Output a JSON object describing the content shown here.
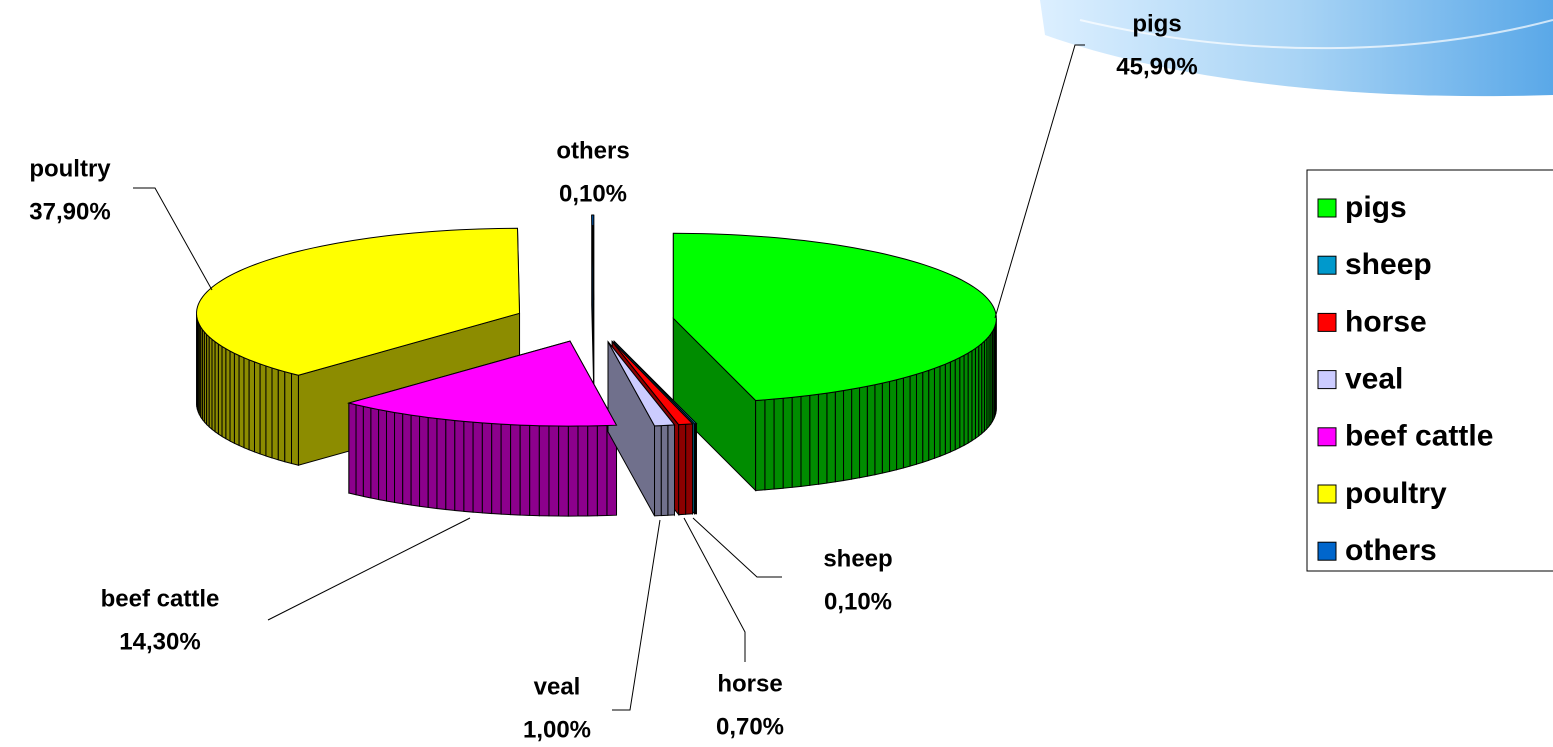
{
  "chart_data": {
    "type": "pie",
    "categories": [
      "pigs",
      "sheep",
      "horse",
      "veal",
      "beef cattle",
      "poultry",
      "others"
    ],
    "values": [
      45.9,
      0.1,
      0.7,
      1.0,
      14.3,
      37.9,
      0.1
    ],
    "value_labels": [
      "45,90%",
      "0,10%",
      "0,70%",
      "1,00%",
      "14,30%",
      "37,90%",
      "0,10%"
    ],
    "colors": [
      "#00ff00",
      "#0099cc",
      "#ff0000",
      "#ccccff",
      "#ff00ff",
      "#ffff00",
      "#0066cc"
    ],
    "legend": "right"
  }
}
